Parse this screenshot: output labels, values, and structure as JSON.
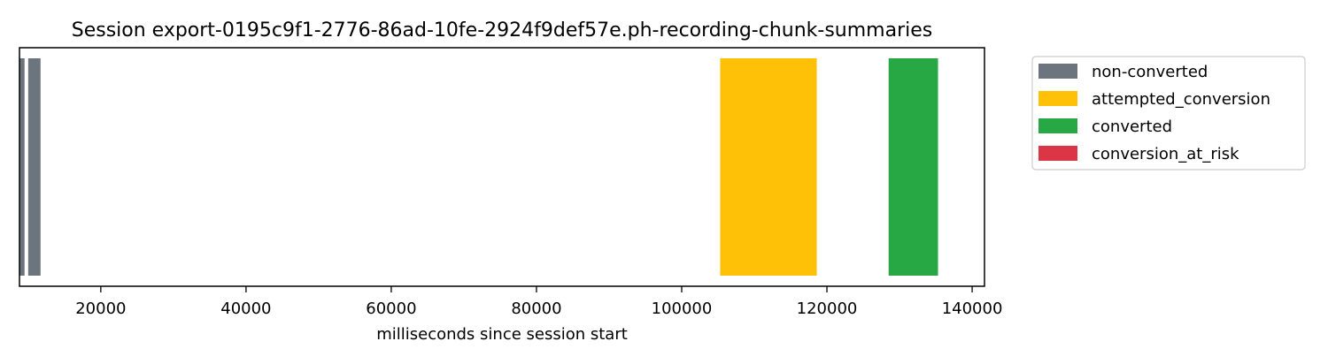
{
  "chart_data": {
    "type": "bar",
    "orientation": "horizontal-timeline",
    "title": "Session export-0195c9f1-2776-86ad-10fe-2924f9def57e.ph-recording-chunk-summaries",
    "xlabel": "milliseconds since session start",
    "ylabel": "",
    "xlim": [
      8800,
      141700
    ],
    "xticks": [
      20000,
      40000,
      60000,
      80000,
      100000,
      120000,
      140000
    ],
    "xtick_labels": [
      "20000",
      "40000",
      "60000",
      "80000",
      "100000",
      "120000",
      "140000"
    ],
    "yticks": [],
    "grid": false,
    "legend_position": "outside-right-top",
    "series": [
      {
        "name": "non-converted",
        "color": "#6c757d",
        "segments": [
          {
            "start": 8800,
            "end": 9500
          },
          {
            "start": 10000,
            "end": 11700
          }
        ]
      },
      {
        "name": "attempted_conversion",
        "color": "#ffc107",
        "segments": [
          {
            "start": 105300,
            "end": 118600
          }
        ]
      },
      {
        "name": "converted",
        "color": "#28a745",
        "segments": [
          {
            "start": 128500,
            "end": 135300
          }
        ]
      },
      {
        "name": "conversion_at_risk",
        "color": "#dc3545",
        "segments": []
      }
    ]
  }
}
